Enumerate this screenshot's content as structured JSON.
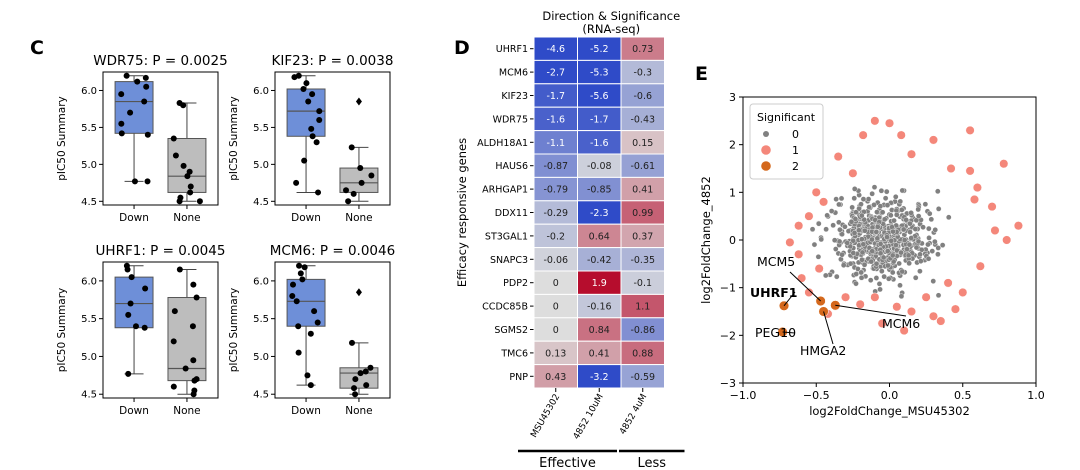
{
  "panels": {
    "c": {
      "letter": "C"
    },
    "d": {
      "letter": "D"
    },
    "e": {
      "letter": "E"
    }
  },
  "chart_data": [
    {
      "id": "wdr75",
      "type": "box",
      "title": "WDR75: P = 0.0025",
      "ylabel": "pIC50 Summary",
      "categories": [
        "Down",
        "None"
      ],
      "ylim": [
        4.45,
        6.25
      ],
      "yticks": [
        4.5,
        5.0,
        5.5,
        6.0
      ],
      "ytick_labels": [
        "4.5",
        "5.0",
        "5.5",
        "6.0"
      ],
      "colors": {
        "Down": "#6e8fd8",
        "None": "#bdbdbd"
      },
      "boxes": [
        {
          "category": "Down",
          "q1": 5.42,
          "median": 5.85,
          "q3": 6.12,
          "whislo": 4.77,
          "whishi": 6.2,
          "points": [
            6.2,
            6.17,
            6.12,
            6.05,
            5.95,
            5.85,
            5.7,
            5.55,
            5.42,
            5.4,
            4.77,
            4.77
          ],
          "fliers": []
        },
        {
          "category": "None",
          "q1": 4.62,
          "median": 4.84,
          "q3": 5.35,
          "whislo": 4.5,
          "whishi": 5.83,
          "points": [
            5.83,
            5.8,
            5.35,
            5.12,
            4.98,
            4.9,
            4.84,
            4.7,
            4.62,
            4.55,
            4.5,
            4.5
          ],
          "fliers": []
        }
      ]
    },
    {
      "id": "kif23",
      "type": "box",
      "title": "KIF23: P = 0.0038",
      "ylabel": "pIC50 Summary",
      "categories": [
        "Down",
        "None"
      ],
      "ylim": [
        4.45,
        6.25
      ],
      "yticks": [
        4.5,
        5.0,
        5.5,
        6.0
      ],
      "ytick_labels": [
        "4.5",
        "5.0",
        "5.5",
        "6.0"
      ],
      "colors": {
        "Down": "#6e8fd8",
        "None": "#bdbdbd"
      },
      "boxes": [
        {
          "category": "Down",
          "q1": 5.38,
          "median": 5.72,
          "q3": 6.02,
          "whislo": 4.62,
          "whishi": 6.2,
          "points": [
            6.2,
            6.18,
            6.1,
            6.02,
            5.95,
            5.85,
            5.72,
            5.6,
            5.48,
            5.38,
            5.3,
            5.05,
            4.75,
            4.62
          ],
          "fliers": []
        },
        {
          "category": "None",
          "q1": 4.62,
          "median": 4.75,
          "q3": 4.95,
          "whislo": 4.5,
          "whishi": 5.23,
          "points": [
            5.23,
            4.95,
            4.85,
            4.75,
            4.65,
            4.6,
            4.5
          ],
          "fliers": [
            5.85
          ]
        }
      ]
    },
    {
      "id": "uhrf1",
      "type": "box",
      "title": "UHRF1: P = 0.0045",
      "ylabel": "pIC50 Summary",
      "categories": [
        "Down",
        "None"
      ],
      "ylim": [
        4.45,
        6.25
      ],
      "yticks": [
        4.5,
        5.0,
        5.5,
        6.0
      ],
      "ytick_labels": [
        "4.5",
        "5.0",
        "5.5",
        "6.0"
      ],
      "colors": {
        "Down": "#6e8fd8",
        "None": "#bdbdbd"
      },
      "boxes": [
        {
          "category": "Down",
          "q1": 5.38,
          "median": 5.7,
          "q3": 6.05,
          "whislo": 4.77,
          "whishi": 6.2,
          "points": [
            6.2,
            6.15,
            6.05,
            5.9,
            5.7,
            5.55,
            5.4,
            5.38,
            4.77
          ],
          "fliers": []
        },
        {
          "category": "None",
          "q1": 4.68,
          "median": 4.84,
          "q3": 5.78,
          "whislo": 4.5,
          "whishi": 6.15,
          "points": [
            6.15,
            5.95,
            5.78,
            5.6,
            5.4,
            5.2,
            4.95,
            4.84,
            4.7,
            4.68,
            4.6,
            4.55,
            4.5
          ],
          "fliers": []
        }
      ]
    },
    {
      "id": "mcm6",
      "type": "box",
      "title": "MCM6: P = 0.0046",
      "ylabel": "pIC50 Summary",
      "categories": [
        "Down",
        "None"
      ],
      "ylim": [
        4.45,
        6.25
      ],
      "yticks": [
        4.5,
        5.0,
        5.5,
        6.0
      ],
      "ytick_labels": [
        "4.5",
        "5.0",
        "5.5",
        "6.0"
      ],
      "colors": {
        "Down": "#6e8fd8",
        "None": "#bdbdbd"
      },
      "boxes": [
        {
          "category": "Down",
          "q1": 5.4,
          "median": 5.73,
          "q3": 6.02,
          "whislo": 4.62,
          "whishi": 6.2,
          "points": [
            6.2,
            6.18,
            6.1,
            6.02,
            5.95,
            5.8,
            5.73,
            5.6,
            5.45,
            5.4,
            5.3,
            5.05,
            4.75,
            4.62
          ],
          "fliers": []
        },
        {
          "category": "None",
          "q1": 4.58,
          "median": 4.78,
          "q3": 4.85,
          "whislo": 4.5,
          "whishi": 5.18,
          "points": [
            5.18,
            4.85,
            4.8,
            4.78,
            4.7,
            4.62,
            4.58,
            4.5
          ],
          "fliers": [
            5.85
          ]
        }
      ]
    },
    {
      "id": "heatmap",
      "type": "heatmap",
      "title": "Direction & Significance",
      "subtitle": "(RNA-seq)",
      "ylabel": "Efficacy responsive genes",
      "rows": [
        "UHRF1",
        "MCM6",
        "KIF23",
        "WDR75",
        "ALDH18A1",
        "HAUS6",
        "ARHGAP1",
        "DDX11",
        "ST3GAL1",
        "SNAPC3",
        "PDP2",
        "CCDC85B",
        "SGMS2",
        "TMC6",
        "PNP"
      ],
      "columns": [
        "MSU45302",
        "4852 10uM",
        "4852 4uM"
      ],
      "values": [
        [
          -4.6,
          -5.2,
          0.73
        ],
        [
          -2.7,
          -5.3,
          -0.3
        ],
        [
          -1.7,
          -5.6,
          -0.6
        ],
        [
          -1.6,
          -1.7,
          -0.43
        ],
        [
          -1.1,
          -1.6,
          0.15
        ],
        [
          -0.87,
          -0.08,
          -0.61
        ],
        [
          -0.79,
          -0.85,
          0.41
        ],
        [
          -0.29,
          -2.3,
          0.99
        ],
        [
          -0.2,
          0.64,
          0.37
        ],
        [
          -0.06,
          -0.42,
          -0.35
        ],
        [
          0,
          1.9,
          -0.1
        ],
        [
          0,
          -0.16,
          1.1
        ],
        [
          0,
          0.84,
          -0.86
        ],
        [
          0.13,
          0.41,
          0.88
        ],
        [
          0.43,
          -3.2,
          -0.59
        ]
      ],
      "labels": [
        [
          "-4.6",
          "-5.2",
          "0.73"
        ],
        [
          "-2.7",
          "-5.3",
          "-0.3"
        ],
        [
          "-1.7",
          "-5.6",
          "-0.6"
        ],
        [
          "-1.6",
          "-1.7",
          "-0.43"
        ],
        [
          "-1.1",
          "-1.6",
          "0.15"
        ],
        [
          "-0.87",
          "-0.08",
          "-0.61"
        ],
        [
          "-0.79",
          "-0.85",
          "0.41"
        ],
        [
          "-0.29",
          "-2.3",
          "0.99"
        ],
        [
          "-0.2",
          "0.64",
          "0.37"
        ],
        [
          "-0.06",
          "-0.42",
          "-0.35"
        ],
        [
          "0",
          "1.9",
          "-0.1"
        ],
        [
          "0",
          "-0.16",
          "1.1"
        ],
        [
          "0",
          "0.84",
          "-0.86"
        ],
        [
          "0.13",
          "0.41",
          "0.88"
        ],
        [
          "0.43",
          "-3.2",
          "-0.59"
        ]
      ],
      "groups": [
        {
          "label": "Effective",
          "columns": [
            "MSU45302",
            "4852 10uM"
          ]
        },
        {
          "label": "Less",
          "columns": [
            "4852 4uM"
          ]
        }
      ]
    },
    {
      "id": "volcano",
      "type": "scatter",
      "xlabel": "log2FoldChange_MSU45302",
      "ylabel": "log2FoldChange_4852",
      "xlim": [
        -1.0,
        1.0
      ],
      "ylim": [
        -3,
        3
      ],
      "xticks": [
        -1.0,
        -0.5,
        0.0,
        0.5,
        1.0
      ],
      "xtick_labels": [
        "−1.0",
        "−0.5",
        "0.0",
        "0.5",
        "1.0"
      ],
      "yticks": [
        -3,
        -2,
        -1,
        0,
        1,
        2,
        3
      ],
      "ytick_labels": [
        "−3",
        "−2",
        "−1",
        "0",
        "1",
        "2",
        "3"
      ],
      "legend": {
        "title": "Significant",
        "position": "top-left",
        "entries": [
          {
            "label": "0",
            "color": "#808080"
          },
          {
            "label": "1",
            "color": "#f4877a"
          },
          {
            "label": "2",
            "color": "#d4681c"
          }
        ]
      },
      "series": [
        {
          "name": "0",
          "color": "#808080",
          "description": "non-significant genes, dense cloud centered near (-0.05, 0)",
          "count": 600,
          "center": [
            -0.05,
            0.05
          ],
          "spread": [
            0.17,
            0.42
          ]
        },
        {
          "name": "1",
          "color": "#f4877a",
          "points": [
            [
              -0.1,
              2.5
            ],
            [
              0.0,
              2.45
            ],
            [
              0.55,
              2.3
            ],
            [
              -0.18,
              2.2
            ],
            [
              0.08,
              2.2
            ],
            [
              0.3,
              2.1
            ],
            [
              0.78,
              1.6
            ],
            [
              -0.35,
              1.75
            ],
            [
              0.15,
              1.8
            ],
            [
              -0.25,
              1.4
            ],
            [
              0.42,
              1.5
            ],
            [
              0.55,
              1.45
            ],
            [
              0.6,
              1.1
            ],
            [
              -0.55,
              0.5
            ],
            [
              -0.62,
              0.3
            ],
            [
              -0.68,
              -0.05
            ],
            [
              0.88,
              0.3
            ],
            [
              0.7,
              0.7
            ],
            [
              0.72,
              0.2
            ],
            [
              0.8,
              0.0
            ],
            [
              0.62,
              -0.55
            ],
            [
              -0.6,
              -0.8
            ],
            [
              -0.55,
              -1.1
            ],
            [
              -0.48,
              -0.6
            ],
            [
              -0.3,
              -1.2
            ],
            [
              -0.2,
              -1.35
            ],
            [
              -0.1,
              -1.2
            ],
            [
              0.05,
              -1.4
            ],
            [
              0.15,
              -1.5
            ],
            [
              0.25,
              -1.2
            ],
            [
              0.3,
              -1.6
            ],
            [
              0.5,
              -1.1
            ],
            [
              0.4,
              -0.9
            ],
            [
              -0.42,
              -1.55
            ],
            [
              -0.05,
              -1.75
            ],
            [
              0.1,
              -1.9
            ],
            [
              0.35,
              -1.7
            ],
            [
              -0.62,
              -0.3
            ],
            [
              -0.5,
              1.0
            ],
            [
              -0.45,
              0.8
            ],
            [
              0.45,
              -1.45
            ],
            [
              0.58,
              0.85
            ]
          ]
        },
        {
          "name": "2",
          "color": "#d4681c",
          "points": [
            [
              -0.72,
              -1.38
            ],
            [
              -0.47,
              -1.28
            ],
            [
              -0.45,
              -1.5
            ],
            [
              -0.37,
              -1.37
            ],
            [
              -0.73,
              -1.93
            ]
          ]
        }
      ],
      "annotations": [
        {
          "text": "MCM5",
          "bold": false,
          "target": [
            -0.47,
            -1.28
          ]
        },
        {
          "text": "UHRF1",
          "bold": true,
          "target": [
            -0.72,
            -1.38
          ]
        },
        {
          "text": "PEG10",
          "bold": false,
          "target": [
            -0.73,
            -1.93
          ]
        },
        {
          "text": "HMGA2",
          "bold": false,
          "target": [
            -0.45,
            -1.5
          ]
        },
        {
          "text": "MCM6",
          "bold": false,
          "target": [
            -0.37,
            -1.37
          ]
        }
      ]
    }
  ]
}
